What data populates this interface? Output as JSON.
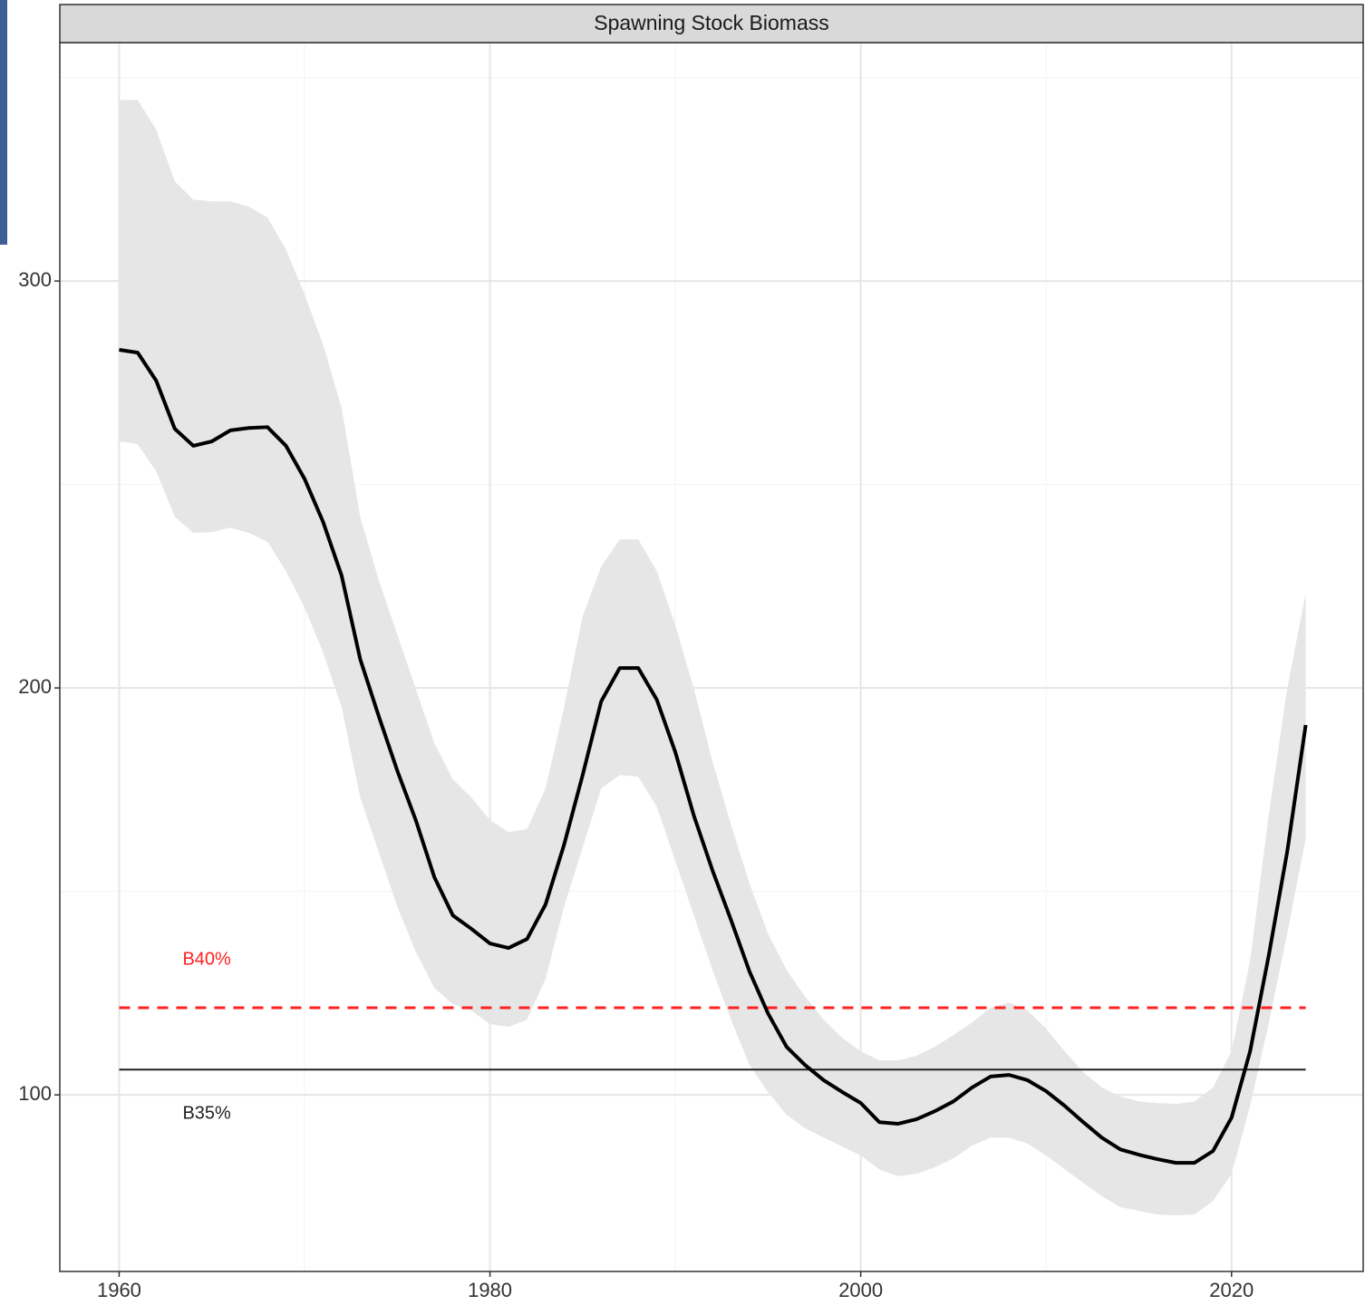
{
  "chart_data": {
    "type": "line",
    "title": "Spawning Stock Biomass",
    "x": [
      1960,
      1961,
      1962,
      1963,
      1964,
      1965,
      1966,
      1967,
      1968,
      1969,
      1970,
      1971,
      1972,
      1973,
      1974,
      1975,
      1976,
      1977,
      1978,
      1979,
      1980,
      1981,
      1982,
      1983,
      1984,
      1985,
      1986,
      1987,
      1988,
      1989,
      1990,
      1991,
      1992,
      1993,
      1994,
      1995,
      1996,
      1997,
      1998,
      1999,
      2000,
      2001,
      2002,
      2003,
      2004,
      2005,
      2006,
      2007,
      2008,
      2009,
      2010,
      2011,
      2012,
      2013,
      2014,
      2015,
      2016,
      2017,
      2018,
      2019,
      2020,
      2021,
      2022,
      2023,
      2024
    ],
    "values": [
      283.1,
      282.4,
      275.5,
      263.7,
      259.5,
      260.6,
      263.3,
      263.9,
      264.1,
      259.5,
      251.4,
      240.8,
      227.6,
      207.1,
      193.1,
      179.7,
      167.5,
      153.5,
      144.1,
      140.8,
      137.2,
      136.1,
      138.3,
      146.8,
      161.5,
      178.6,
      196.7,
      204.9,
      204.9,
      197.1,
      184.2,
      168.6,
      155.2,
      143.0,
      130.3,
      120.0,
      111.8,
      107.3,
      103.6,
      100.7,
      98.0,
      93.3,
      92.9,
      94.0,
      96.0,
      98.4,
      101.8,
      104.5,
      104.9,
      103.6,
      100.9,
      97.3,
      93.3,
      89.5,
      86.6,
      85.3,
      84.2,
      83.3,
      83.3,
      86.2,
      94.4,
      110.7,
      134.1,
      159.7,
      190.9
    ],
    "upper": [
      344.5,
      344.5,
      337.2,
      324.5,
      320.0,
      319.6,
      319.6,
      318.3,
      315.6,
      307.8,
      296.7,
      284.4,
      268.8,
      242.1,
      226.5,
      213.1,
      199.8,
      186.4,
      177.5,
      173.1,
      167.5,
      164.6,
      165.3,
      175.3,
      195.3,
      217.6,
      229.8,
      236.5,
      236.5,
      228.7,
      215.4,
      199.8,
      182.0,
      166.4,
      151.9,
      139.6,
      130.7,
      124.1,
      118.5,
      114.0,
      110.7,
      108.5,
      108.5,
      109.6,
      111.8,
      114.7,
      117.8,
      121.4,
      122.7,
      120.7,
      116.3,
      110.7,
      105.6,
      101.8,
      99.6,
      98.4,
      98.0,
      97.8,
      98.4,
      101.8,
      110.7,
      133.0,
      168.6,
      199.8,
      223.2
    ],
    "lower": [
      260.6,
      259.9,
      253.2,
      242.1,
      238.1,
      238.3,
      239.4,
      238.1,
      235.9,
      228.7,
      219.8,
      208.7,
      195.3,
      173.1,
      159.7,
      146.3,
      135.2,
      126.3,
      122.3,
      120.7,
      117.4,
      116.7,
      118.5,
      128.5,
      146.3,
      160.8,
      175.3,
      178.6,
      178.2,
      170.8,
      157.5,
      144.1,
      130.7,
      118.5,
      107.3,
      100.7,
      95.1,
      91.8,
      89.5,
      87.3,
      85.1,
      81.7,
      80.0,
      80.6,
      82.2,
      84.4,
      87.5,
      89.5,
      89.5,
      88.0,
      85.1,
      81.7,
      78.4,
      75.1,
      72.4,
      71.5,
      70.6,
      70.4,
      70.6,
      73.9,
      80.6,
      97.3,
      117.4,
      139.6,
      163.0
    ],
    "color": "#000000",
    "band_color": "#e6e6e6",
    "reference_lines": [
      {
        "label": "B40%",
        "value": 121.4,
        "color": "#ff2020",
        "dashed": true,
        "label_side": "above"
      },
      {
        "label": "B35%",
        "value": 106.2,
        "color": "#222222",
        "dashed": false,
        "label_side": "below"
      }
    ],
    "xlim": [
      1956.8,
      2027.1
    ],
    "ylim": [
      56.6,
      358.6
    ],
    "xticks": [
      1960,
      1980,
      2000,
      2020
    ],
    "yticks": [
      100,
      200,
      300
    ],
    "xminor": [
      1970,
      1990,
      2010
    ],
    "yminor": [
      150,
      250,
      350
    ],
    "grid": true
  }
}
